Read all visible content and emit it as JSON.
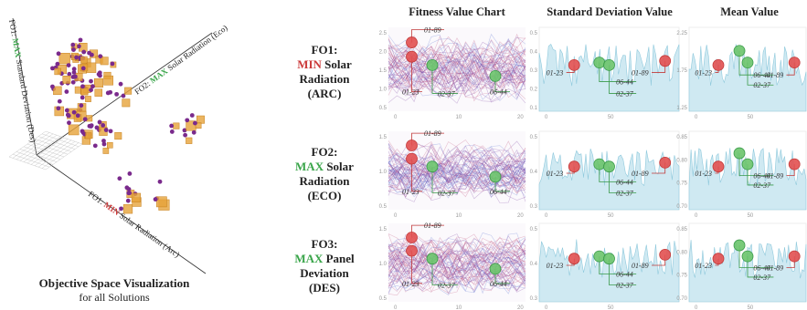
{
  "scatter": {
    "axis_y_prefix": "FO1:",
    "axis_y_em": "MAX",
    "axis_y_rest": "Standard Deviation (Des)",
    "axis_z_prefix": "FO2:",
    "axis_z_em": "MAX",
    "axis_z_rest": "Solar Radiation (Eco)",
    "axis_x_prefix": "FO1:",
    "axis_x_em": "MIN",
    "axis_x_rest": "Solar Radiation (Arc)",
    "caption_title": "Objective Space Visualization",
    "caption_sub": "for all Solutions"
  },
  "columns": {
    "fitness": "Fitness Value Chart",
    "stddev": "Standard Deviation Value",
    "mean": "Mean Value"
  },
  "rows": [
    {
      "fo": "FO1:",
      "em": "MIN",
      "em_color": "#cc3b3b",
      "rest": "Solar Radiation",
      "tag": "(ARC)"
    },
    {
      "fo": "FO2:",
      "em": "MAX",
      "em_color": "#3aa54a",
      "rest": "Solar Radiation",
      "tag": "(ECO)"
    },
    {
      "fo": "FO3:",
      "em": "MAX",
      "em_color": "#3aa54a",
      "rest": "Panel Deviation",
      "tag": "(DES)"
    }
  ],
  "annotations": [
    "01-89",
    "01-23",
    "02-37",
    "06-44"
  ],
  "colors": {
    "red": "#e25050",
    "green": "#6cc46c",
    "purple": "#7a2a8c",
    "orange": "#e6a33a",
    "area": "#cfe9f2"
  },
  "ticks": {
    "fit_x": [
      "0",
      "10",
      "20"
    ],
    "sd_x": [
      "0",
      "50"
    ],
    "mean_x": [
      "0",
      "50"
    ],
    "r1_fit_y": [
      "2.5",
      "2.0",
      "1.5",
      "1.0",
      "0.5"
    ],
    "r1_sd_y": [
      "0.5",
      "0.4",
      "0.3",
      "0.2",
      "0.1"
    ],
    "r1_mean_y": [
      "2.25",
      "1.75",
      "1.25"
    ],
    "r2_fit_y": [
      "1.5",
      "1.0",
      "0.5"
    ],
    "r2_sd_y": [
      "0.5",
      "0.4",
      "0.3"
    ],
    "r2_mean_y": [
      "0.85",
      "0.80",
      "0.75",
      "0.70"
    ],
    "r3_fit_y": [
      "1.5",
      "1.0",
      "0.5"
    ],
    "r3_sd_y": [
      "0.5",
      "0.4",
      "0.3"
    ],
    "r3_mean_y": [
      "0.85",
      "0.80",
      "0.75",
      "0.70"
    ]
  }
}
